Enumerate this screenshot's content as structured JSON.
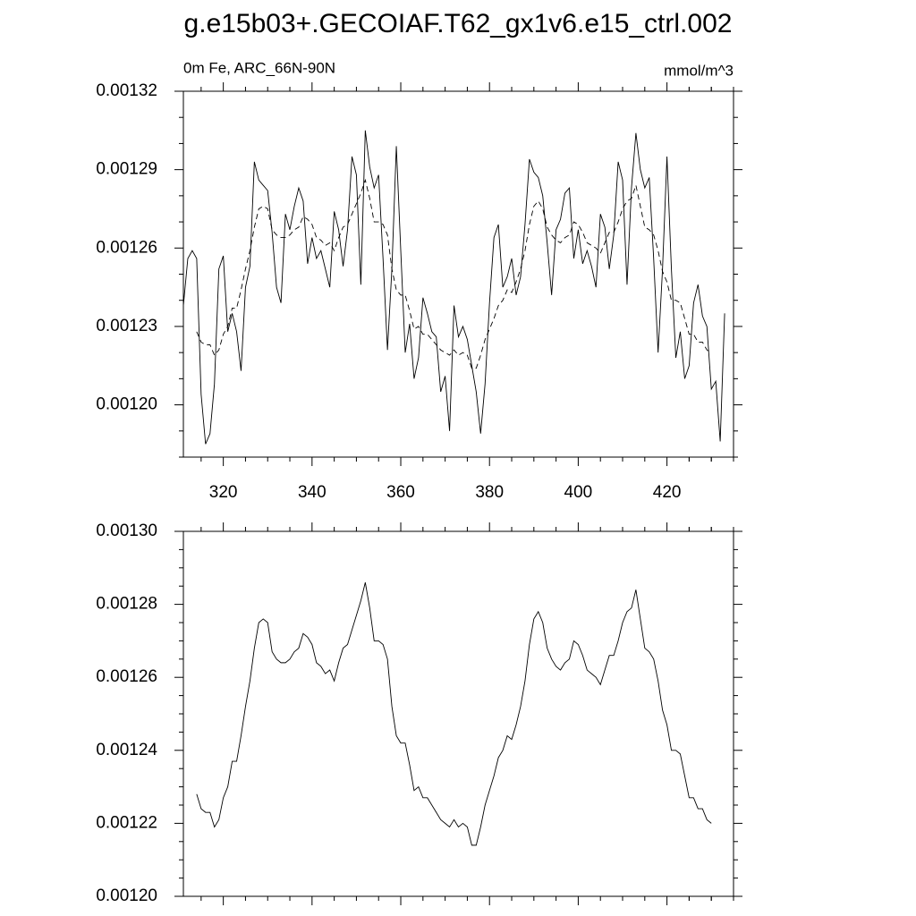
{
  "chart_data": [
    {
      "type": "line",
      "title": "g.e15b03+.GECOIAF.T62_gx1v6.e15_ctrl.002",
      "subtitle_left": "0m Fe, ARC_66N-90N",
      "subtitle_right": "mmol/m^3",
      "xlim": [
        311,
        435
      ],
      "xticks": [
        320,
        340,
        360,
        380,
        400,
        420
      ],
      "ylim": [
        0.00118,
        0.00132
      ],
      "yticks": [
        {
          "value": 0.0012,
          "label": "0.00120"
        },
        0.00123,
        0.00126,
        0.00129,
        0.00132
      ],
      "series": [
        {
          "color": "#000000",
          "dashed": false,
          "x": [
            311,
            312,
            313,
            314,
            315,
            316,
            317,
            318,
            319,
            320,
            321,
            322,
            323,
            324,
            325,
            326,
            327,
            328,
            329,
            330,
            331,
            332,
            333,
            334,
            335,
            336,
            337,
            338,
            339,
            340,
            341,
            342,
            343,
            344,
            345,
            346,
            347,
            348,
            349,
            350,
            351,
            352,
            353,
            354,
            355,
            356,
            357,
            358,
            359,
            360,
            361,
            362,
            363,
            364,
            365,
            366,
            367,
            368,
            369,
            370,
            371,
            372,
            373,
            374,
            375,
            376,
            377,
            378,
            379,
            380,
            381,
            382,
            383,
            384,
            385,
            386,
            387,
            388,
            389,
            390,
            391,
            392,
            393,
            394,
            395,
            396,
            397,
            398,
            399,
            400,
            401,
            402,
            403,
            404,
            405,
            406,
            407,
            408,
            409,
            410,
            411,
            412,
            413,
            414,
            415,
            416,
            417,
            418,
            419,
            420,
            421,
            422,
            423,
            424,
            425,
            426,
            427,
            428,
            429,
            430,
            431,
            432,
            433
          ],
          "values": [
            0.001238,
            0.001256,
            0.001259,
            0.001256,
            0.001204,
            0.001185,
            0.001189,
            0.001208,
            0.001252,
            0.001257,
            0.001228,
            0.001235,
            0.001228,
            0.001213,
            0.001245,
            0.001253,
            0.001293,
            0.001286,
            0.001284,
            0.001282,
            0.001266,
            0.001245,
            0.001239,
            0.001273,
            0.001267,
            0.001276,
            0.001283,
            0.001278,
            0.001254,
            0.001264,
            0.001256,
            0.001259,
            0.001252,
            0.001245,
            0.001274,
            0.001267,
            0.001253,
            0.001267,
            0.001295,
            0.001288,
            0.001246,
            0.001305,
            0.001291,
            0.001283,
            0.001288,
            0.001256,
            0.001221,
            0.001252,
            0.001299,
            0.001259,
            0.00122,
            0.001231,
            0.00121,
            0.001218,
            0.001241,
            0.001235,
            0.001228,
            0.001226,
            0.001205,
            0.001211,
            0.00119,
            0.001238,
            0.001226,
            0.00123,
            0.001225,
            0.001215,
            0.001205,
            0.001189,
            0.001208,
            0.001239,
            0.001264,
            0.001269,
            0.001245,
            0.001249,
            0.001256,
            0.001242,
            0.001249,
            0.001269,
            0.001294,
            0.001289,
            0.001287,
            0.00128,
            0.001262,
            0.001242,
            0.001267,
            0.001271,
            0.001281,
            0.001283,
            0.001256,
            0.001267,
            0.001254,
            0.001259,
            0.001253,
            0.001245,
            0.001273,
            0.001268,
            0.001252,
            0.001265,
            0.001293,
            0.001286,
            0.001246,
            0.001283,
            0.001304,
            0.00129,
            0.001283,
            0.001287,
            0.001256,
            0.00122,
            0.001252,
            0.001295,
            0.001252,
            0.001218,
            0.001228,
            0.00121,
            0.001215,
            0.001239,
            0.001246,
            0.001234,
            0.00123,
            0.001206,
            0.001209,
            0.001186,
            0.001235
          ]
        },
        {
          "color": "#000000",
          "dashed": true,
          "x": [
            314,
            315,
            316,
            317,
            318,
            319,
            320,
            321,
            322,
            323,
            324,
            325,
            326,
            327,
            328,
            329,
            330,
            331,
            332,
            333,
            334,
            335,
            336,
            337,
            338,
            339,
            340,
            341,
            342,
            343,
            344,
            345,
            346,
            347,
            348,
            349,
            350,
            351,
            352,
            353,
            354,
            355,
            356,
            357,
            358,
            359,
            360,
            361,
            362,
            363,
            364,
            365,
            366,
            367,
            368,
            369,
            370,
            371,
            372,
            373,
            374,
            375,
            376,
            377,
            378,
            379,
            380,
            381,
            382,
            383,
            384,
            385,
            386,
            387,
            388,
            389,
            390,
            391,
            392,
            393,
            394,
            395,
            396,
            397,
            398,
            399,
            400,
            401,
            402,
            403,
            404,
            405,
            406,
            407,
            408,
            409,
            410,
            411,
            412,
            413,
            414,
            415,
            416,
            417,
            418,
            419,
            420,
            421,
            422,
            423,
            424,
            425,
            426,
            427,
            428,
            429,
            430
          ],
          "values": [
            0.001228,
            0.001224,
            0.001223,
            0.001223,
            0.001219,
            0.001221,
            0.001227,
            0.00123,
            0.001237,
            0.001237,
            0.001244,
            0.001252,
            0.001259,
            0.001268,
            0.001275,
            0.001276,
            0.001275,
            0.001267,
            0.001265,
            0.001264,
            0.001264,
            0.001265,
            0.001267,
            0.001268,
            0.001272,
            0.001271,
            0.001269,
            0.001264,
            0.001263,
            0.001261,
            0.001262,
            0.001259,
            0.001264,
            0.001268,
            0.001269,
            0.001273,
            0.001277,
            0.001281,
            0.001286,
            0.001279,
            0.00127,
            0.00127,
            0.001269,
            0.001265,
            0.001252,
            0.001244,
            0.001242,
            0.001242,
            0.001236,
            0.001229,
            0.00123,
            0.001227,
            0.001227,
            0.001225,
            0.001223,
            0.001221,
            0.00122,
            0.001219,
            0.001221,
            0.001219,
            0.00122,
            0.001219,
            0.001214,
            0.001214,
            0.001219,
            0.001225,
            0.001229,
            0.001233,
            0.001238,
            0.00124,
            0.001244,
            0.001243,
            0.001247,
            0.001252,
            0.001259,
            0.001269,
            0.001276,
            0.001278,
            0.001275,
            0.001268,
            0.001265,
            0.001263,
            0.001262,
            0.001264,
            0.001265,
            0.00127,
            0.001269,
            0.001266,
            0.001262,
            0.001261,
            0.00126,
            0.001258,
            0.001262,
            0.001266,
            0.001266,
            0.00127,
            0.001275,
            0.001278,
            0.001279,
            0.001284,
            0.001276,
            0.001268,
            0.001267,
            0.001265,
            0.001259,
            0.001251,
            0.001247,
            0.00124,
            0.00124,
            0.001239,
            0.001233,
            0.001227,
            0.001227,
            0.001224,
            0.001224,
            0.001221,
            0.00122
          ]
        }
      ]
    },
    {
      "type": "line",
      "xlim": [
        311,
        435
      ],
      "xticks": [
        320,
        340,
        360,
        380,
        400,
        420
      ],
      "ylim": [
        0.0012,
        0.0013
      ],
      "yticks": [
        {
          "value": 0.0012,
          "label": "0.00120"
        },
        0.00122,
        0.00124,
        0.00126,
        0.00128,
        {
          "value": 0.0013,
          "label": "0.00130"
        }
      ],
      "series": [
        {
          "color": "#000000",
          "dashed": false,
          "x": [
            314,
            315,
            316,
            317,
            318,
            319,
            320,
            321,
            322,
            323,
            324,
            325,
            326,
            327,
            328,
            329,
            330,
            331,
            332,
            333,
            334,
            335,
            336,
            337,
            338,
            339,
            340,
            341,
            342,
            343,
            344,
            345,
            346,
            347,
            348,
            349,
            350,
            351,
            352,
            353,
            354,
            355,
            356,
            357,
            358,
            359,
            360,
            361,
            362,
            363,
            364,
            365,
            366,
            367,
            368,
            369,
            370,
            371,
            372,
            373,
            374,
            375,
            376,
            377,
            378,
            379,
            380,
            381,
            382,
            383,
            384,
            385,
            386,
            387,
            388,
            389,
            390,
            391,
            392,
            393,
            394,
            395,
            396,
            397,
            398,
            399,
            400,
            401,
            402,
            403,
            404,
            405,
            406,
            407,
            408,
            409,
            410,
            411,
            412,
            413,
            414,
            415,
            416,
            417,
            418,
            419,
            420,
            421,
            422,
            423,
            424,
            425,
            426,
            427,
            428,
            429,
            430
          ],
          "values": [
            0.001228,
            0.001224,
            0.001223,
            0.001223,
            0.001219,
            0.001221,
            0.001227,
            0.00123,
            0.001237,
            0.001237,
            0.001244,
            0.001252,
            0.001259,
            0.001268,
            0.001275,
            0.001276,
            0.001275,
            0.001267,
            0.001265,
            0.001264,
            0.001264,
            0.001265,
            0.001267,
            0.001268,
            0.001272,
            0.001271,
            0.001269,
            0.001264,
            0.001263,
            0.001261,
            0.001262,
            0.001259,
            0.001264,
            0.001268,
            0.001269,
            0.001273,
            0.001277,
            0.001281,
            0.001286,
            0.001279,
            0.00127,
            0.00127,
            0.001269,
            0.001265,
            0.001252,
            0.001244,
            0.001242,
            0.001242,
            0.001236,
            0.001229,
            0.00123,
            0.001227,
            0.001227,
            0.001225,
            0.001223,
            0.001221,
            0.00122,
            0.001219,
            0.001221,
            0.001219,
            0.00122,
            0.001219,
            0.001214,
            0.001214,
            0.001219,
            0.001225,
            0.001229,
            0.001233,
            0.001238,
            0.00124,
            0.001244,
            0.001243,
            0.001247,
            0.001252,
            0.001259,
            0.001269,
            0.001276,
            0.001278,
            0.001275,
            0.001268,
            0.001265,
            0.001263,
            0.001262,
            0.001264,
            0.001265,
            0.00127,
            0.001269,
            0.001266,
            0.001262,
            0.001261,
            0.00126,
            0.001258,
            0.001262,
            0.001266,
            0.001266,
            0.00127,
            0.001275,
            0.001278,
            0.001279,
            0.001284,
            0.001276,
            0.001268,
            0.001267,
            0.001265,
            0.001259,
            0.001251,
            0.001247,
            0.00124,
            0.00124,
            0.001239,
            0.001233,
            0.001227,
            0.001227,
            0.001224,
            0.001224,
            0.001221,
            0.00122
          ]
        }
      ]
    }
  ]
}
